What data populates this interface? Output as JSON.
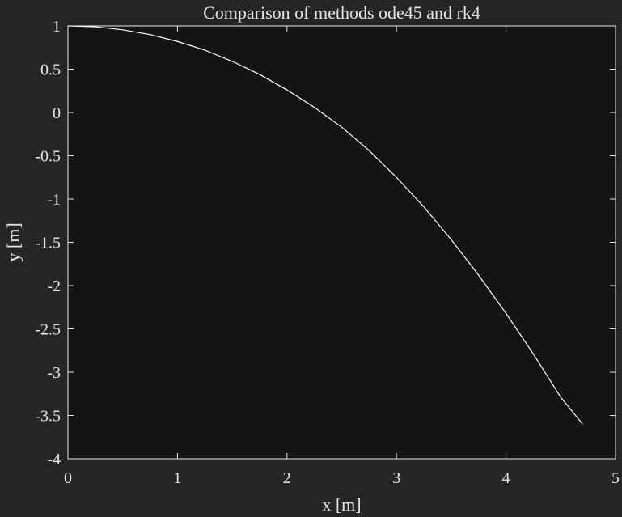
{
  "chart_data": {
    "type": "line",
    "title": "Comparison of methods ode45 and rk4",
    "xlabel": "x [m]",
    "ylabel": "y [m]",
    "xlim": [
      0,
      5
    ],
    "ylim": [
      -4,
      1
    ],
    "xticks": [
      "0",
      "1",
      "2",
      "3",
      "4",
      "5"
    ],
    "yticks": [
      "1",
      "0.5",
      "0",
      "-0.5",
      "-1",
      "-1.5",
      "-2",
      "-2.5",
      "-3",
      "-3.5",
      "-4"
    ],
    "grid": false,
    "legend": false,
    "colors": {
      "figure_background": "#262626",
      "axes_background": "#141414",
      "axes_color": "#e6e6e6",
      "line_color": "#ffffff"
    },
    "series": [
      {
        "x": [
          0,
          0.25,
          0.5,
          0.75,
          1.0,
          1.25,
          1.5,
          1.75,
          2.0,
          2.25,
          2.5,
          2.75,
          3.0,
          3.25,
          3.5,
          3.75,
          4.0,
          4.25,
          4.5,
          4.7
        ],
        "y": [
          1.0,
          0.99,
          0.955,
          0.9,
          0.82,
          0.72,
          0.59,
          0.44,
          0.26,
          0.06,
          -0.17,
          -0.44,
          -0.75,
          -1.09,
          -1.47,
          -1.88,
          -2.32,
          -2.79,
          -3.29,
          -3.6
        ]
      }
    ]
  }
}
